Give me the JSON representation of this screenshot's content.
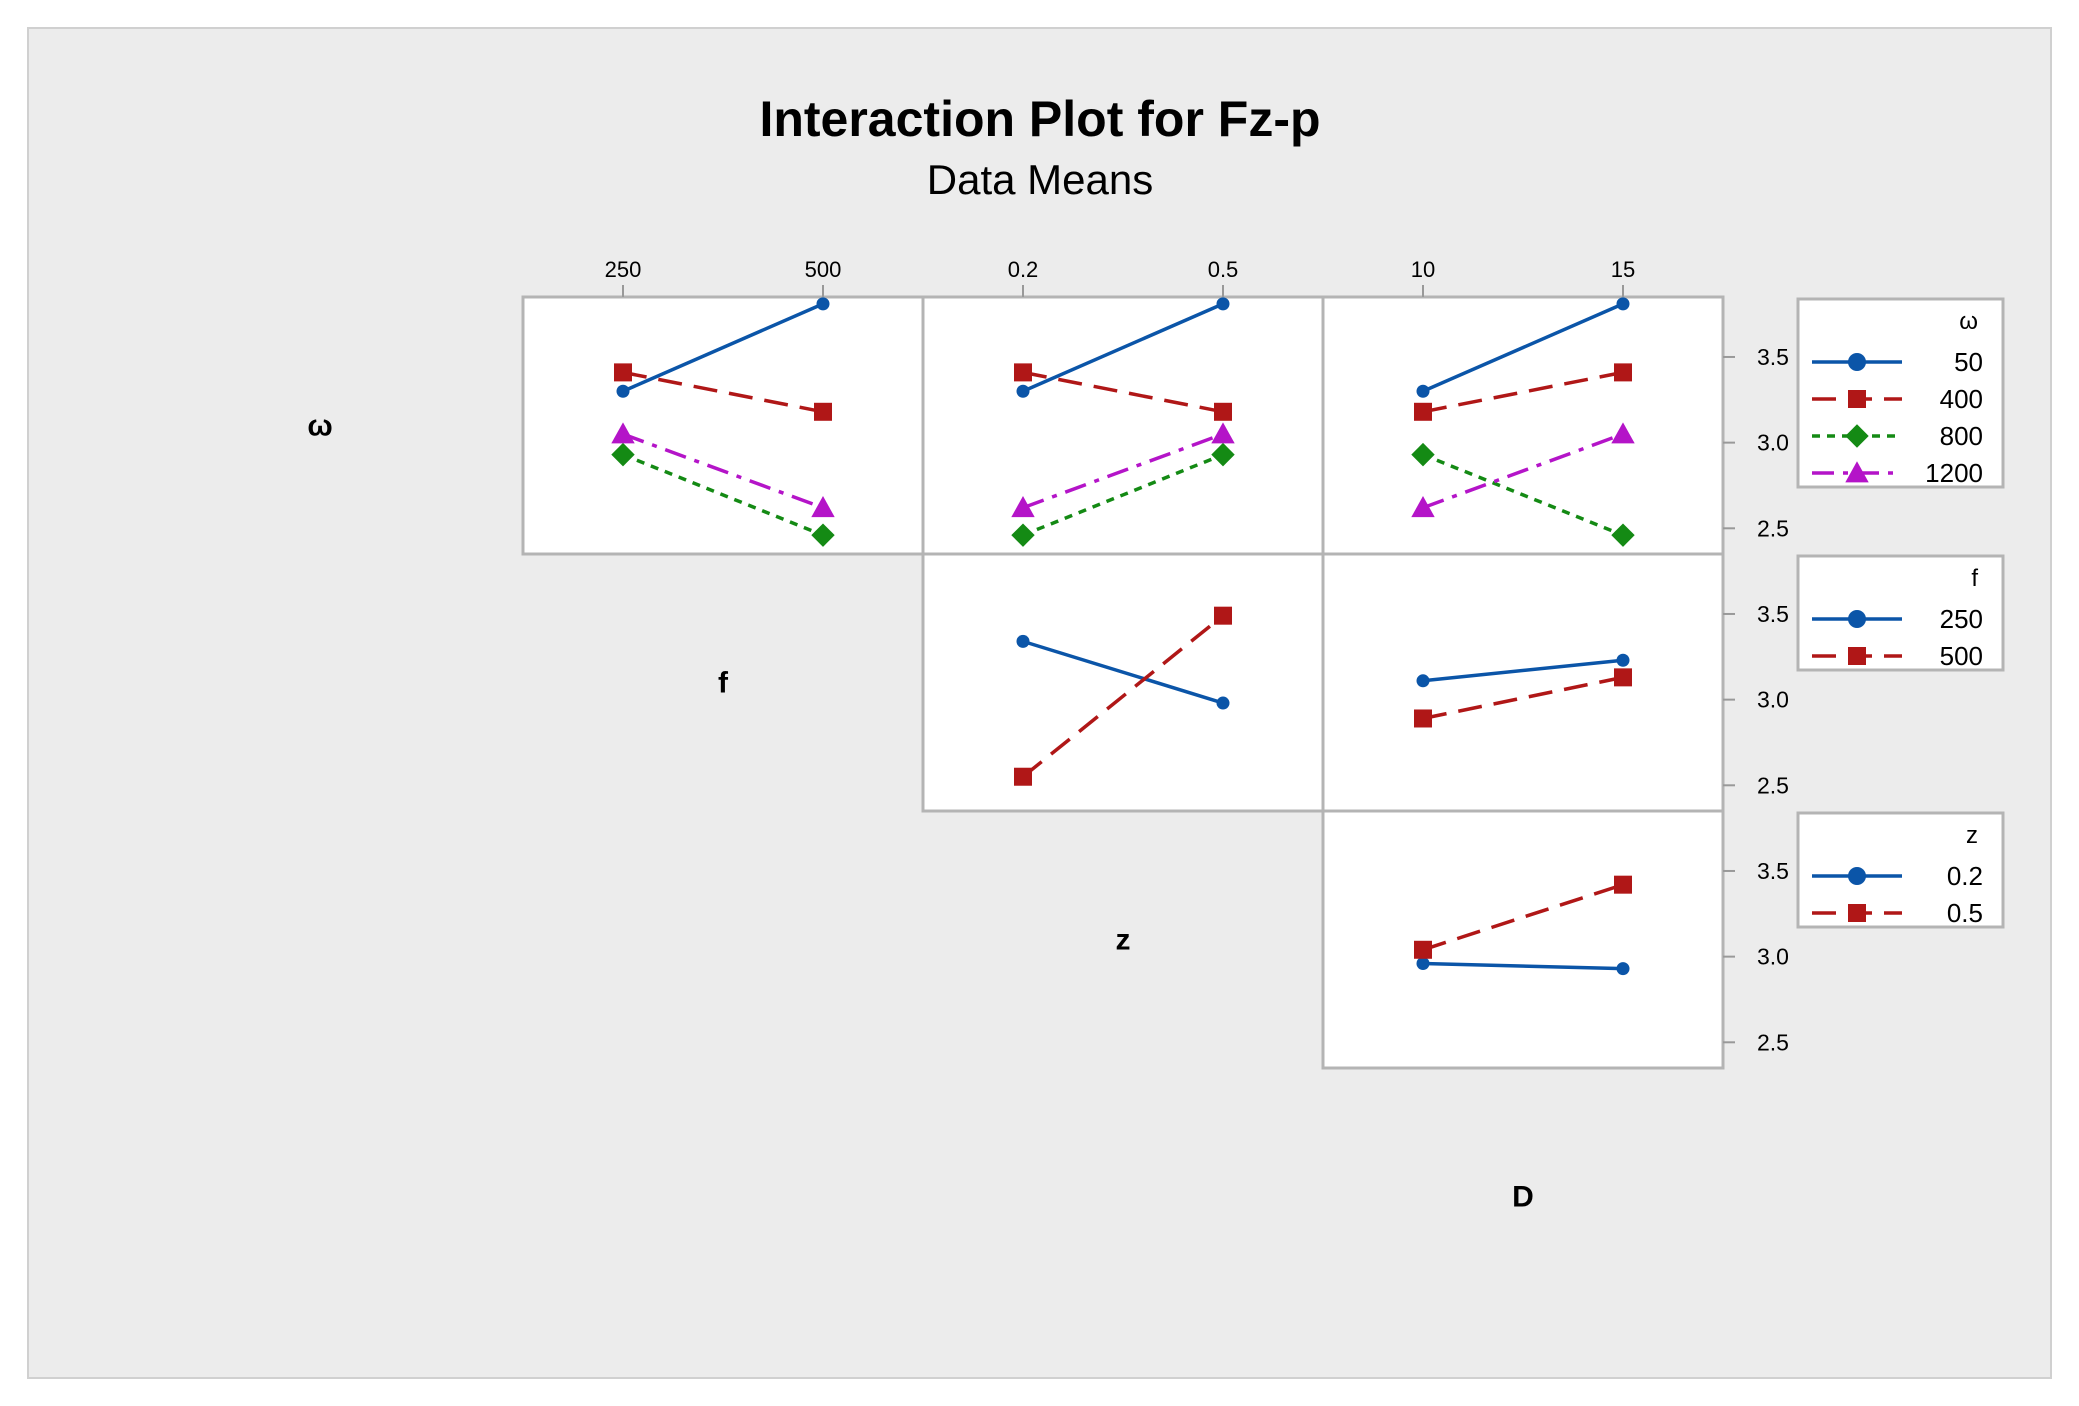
{
  "title": "Interaction Plot for Fz-p",
  "subtitle": "Data Means",
  "factors": [
    "ω",
    "f",
    "z",
    "D"
  ],
  "colors": {
    "background": "#ececec",
    "panel": "#ffffff",
    "frame": "#b4b4b4",
    "blue": "#0b55a8",
    "red": "#b01717",
    "green": "#148a14",
    "magenta": "#b414c8"
  },
  "chart_data": {
    "type": "line",
    "title": "Interaction Plot for Fz-p",
    "subtitle": "Data Means",
    "ylim": [
      2.35,
      3.85
    ],
    "y_ticks": [
      2.5,
      3.0,
      3.5
    ],
    "y_tick_labels": [
      "2.5",
      "3.0",
      "3.5"
    ],
    "grid": false,
    "x_levels": {
      "ω": [
        "250",
        "500"
      ],
      "f": [
        "0.2",
        "0.5"
      ],
      "z": [
        "10",
        "15"
      ]
    },
    "top_axis_labels": [
      {
        "col": 0,
        "labels": [
          "250",
          "500"
        ]
      },
      {
        "col": 1,
        "labels": [
          "0.2",
          "0.5"
        ]
      },
      {
        "col": 2,
        "labels": [
          "10",
          "15"
        ]
      }
    ],
    "diagonal_labels": [
      "ω",
      "f",
      "z",
      "D"
    ],
    "legends": [
      {
        "title": "ω",
        "entries": [
          {
            "label": "50",
            "color": "blue",
            "marker": "circle",
            "dash": "solid"
          },
          {
            "label": "400",
            "color": "red",
            "marker": "square",
            "dash": "dashed"
          },
          {
            "label": "800",
            "color": "green",
            "marker": "diamond",
            "dash": "dotted"
          },
          {
            "label": "1200",
            "color": "magenta",
            "marker": "triangle",
            "dash": "dashdot"
          }
        ]
      },
      {
        "title": "f",
        "entries": [
          {
            "label": "250",
            "color": "blue",
            "marker": "circle",
            "dash": "solid"
          },
          {
            "label": "500",
            "color": "red",
            "marker": "square",
            "dash": "dashed"
          }
        ]
      },
      {
        "title": "z",
        "entries": [
          {
            "label": "0.2",
            "color": "blue",
            "marker": "circle",
            "dash": "solid"
          },
          {
            "label": "0.5",
            "color": "red",
            "marker": "square",
            "dash": "dashed"
          }
        ]
      }
    ],
    "panels": [
      {
        "row": 0,
        "col": 0,
        "trace_factor": "ω",
        "x_factor": "f",
        "series": [
          {
            "level": "50",
            "values": [
              3.3,
              3.81
            ]
          },
          {
            "level": "400",
            "values": [
              3.41,
              3.18
            ]
          },
          {
            "level": "800",
            "values": [
              2.93,
              2.46
            ]
          },
          {
            "level": "1200",
            "values": [
              3.05,
              2.62
            ]
          }
        ]
      },
      {
        "row": 0,
        "col": 1,
        "trace_factor": "ω",
        "x_factor": "z",
        "series": [
          {
            "level": "50",
            "values": [
              3.3,
              3.81
            ]
          },
          {
            "level": "400",
            "values": [
              3.41,
              3.18
            ]
          },
          {
            "level": "800",
            "values": [
              2.46,
              2.93
            ]
          },
          {
            "level": "1200",
            "values": [
              2.62,
              3.05
            ]
          }
        ]
      },
      {
        "row": 0,
        "col": 2,
        "trace_factor": "ω",
        "x_factor": "D",
        "series": [
          {
            "level": "50",
            "values": [
              3.3,
              3.81
            ]
          },
          {
            "level": "400",
            "values": [
              3.18,
              3.41
            ]
          },
          {
            "level": "800",
            "values": [
              2.93,
              2.46
            ]
          },
          {
            "level": "1200",
            "values": [
              2.62,
              3.05
            ]
          }
        ]
      },
      {
        "row": 1,
        "col": 1,
        "trace_factor": "f",
        "x_factor": "z",
        "series": [
          {
            "level": "250",
            "values": [
              3.34,
              2.98
            ]
          },
          {
            "level": "500",
            "values": [
              2.55,
              3.49
            ]
          }
        ]
      },
      {
        "row": 1,
        "col": 2,
        "trace_factor": "f",
        "x_factor": "D",
        "series": [
          {
            "level": "250",
            "values": [
              3.11,
              3.23
            ]
          },
          {
            "level": "500",
            "values": [
              2.89,
              3.13
            ]
          }
        ]
      },
      {
        "row": 2,
        "col": 2,
        "trace_factor": "z",
        "x_factor": "D",
        "series": [
          {
            "level": "0.2",
            "values": [
              2.96,
              2.93
            ]
          },
          {
            "level": "0.5",
            "values": [
              3.04,
              3.42
            ]
          }
        ]
      }
    ]
  }
}
